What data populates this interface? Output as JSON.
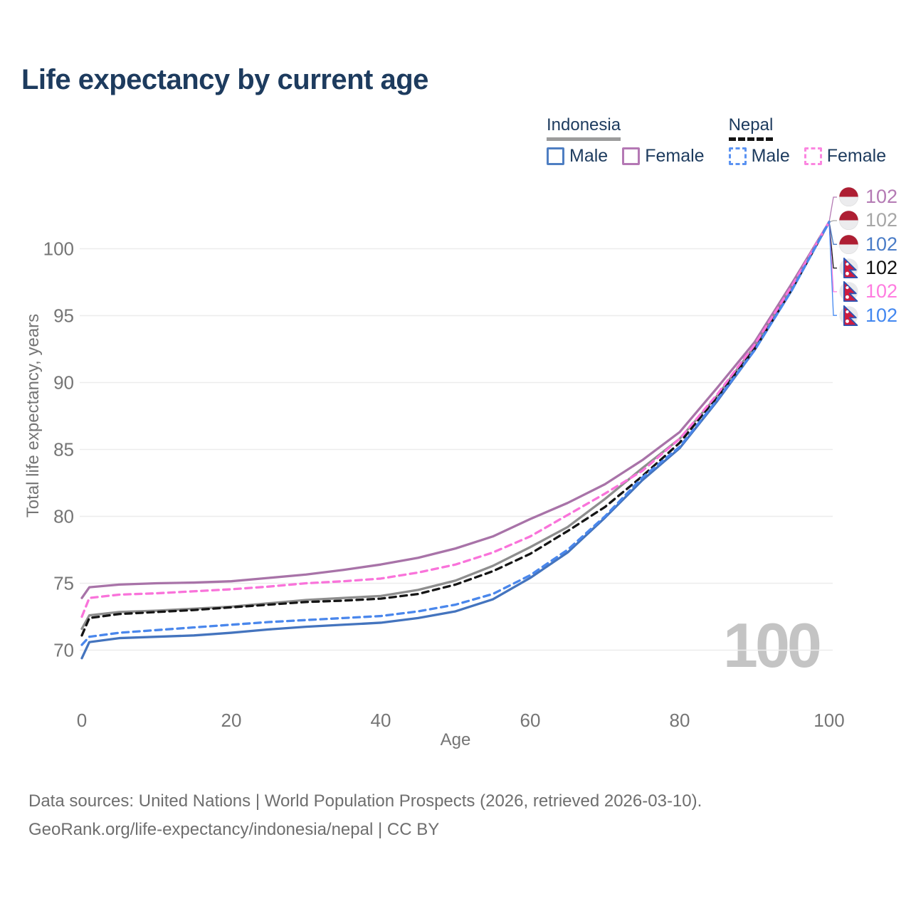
{
  "title": "Life expectancy by current age",
  "legend": {
    "groups": [
      {
        "name": "Indonesia",
        "line_style": "solid",
        "underline_color": "#9c9c9c",
        "items": [
          {
            "label": "Male",
            "color": "#4e7ec2",
            "dash": false
          },
          {
            "label": "Female",
            "color": "#b478b4",
            "dash": false
          }
        ]
      },
      {
        "name": "Nepal",
        "line_style": "dashed",
        "underline_color": "#141414",
        "items": [
          {
            "label": "Male",
            "color": "#5b93f2",
            "dash": true
          },
          {
            "label": "Female",
            "color": "#fb86e0",
            "dash": true
          }
        ]
      }
    ]
  },
  "chart_data": {
    "type": "line",
    "title": "Life expectancy by current age",
    "xlabel": "Age",
    "ylabel": "Total life expectancy, years",
    "x_ticks": [
      0,
      20,
      40,
      60,
      80,
      100
    ],
    "y_ticks": [
      70,
      75,
      80,
      85,
      90,
      95,
      100
    ],
    "xlim": [
      0,
      100
    ],
    "ylim": [
      66,
      104
    ],
    "grid": true,
    "watermark": "100",
    "x": [
      0,
      1,
      5,
      10,
      15,
      20,
      25,
      30,
      35,
      40,
      45,
      50,
      55,
      60,
      65,
      70,
      75,
      80,
      85,
      90,
      95,
      100
    ],
    "series": [
      {
        "name": "Indonesia Total",
        "country": "indonesia",
        "color": "#8e8e8e",
        "dash": false,
        "values": [
          71.6,
          72.6,
          72.85,
          72.95,
          73.1,
          73.25,
          73.5,
          73.75,
          73.9,
          74.05,
          74.5,
          75.2,
          76.3,
          77.7,
          79.2,
          81.3,
          83.6,
          85.8,
          89.0,
          92.7,
          97.1,
          102
        ]
      },
      {
        "name": "Indonesia Female",
        "country": "indonesia",
        "color": "#a873a8",
        "dash": false,
        "values": [
          73.9,
          74.7,
          74.9,
          75.0,
          75.05,
          75.15,
          75.4,
          75.65,
          76.0,
          76.4,
          76.9,
          77.6,
          78.5,
          79.8,
          81.0,
          82.4,
          84.2,
          86.3,
          89.6,
          93.0,
          97.4,
          102
        ]
      },
      {
        "name": "Indonesia Male",
        "country": "indonesia",
        "color": "#4474be",
        "dash": false,
        "values": [
          69.4,
          70.6,
          70.9,
          71.0,
          71.1,
          71.3,
          71.55,
          71.75,
          71.9,
          72.05,
          72.4,
          72.9,
          73.8,
          75.4,
          77.3,
          79.9,
          82.7,
          85.1,
          88.6,
          92.4,
          96.9,
          102
        ]
      },
      {
        "name": "Nepal Total",
        "country": "nepal",
        "color": "#151515",
        "dash": true,
        "values": [
          71.1,
          72.4,
          72.7,
          72.85,
          73.0,
          73.2,
          73.4,
          73.6,
          73.7,
          73.85,
          74.2,
          74.9,
          75.9,
          77.2,
          78.9,
          80.7,
          83.0,
          85.5,
          88.9,
          92.5,
          97.0,
          102
        ]
      },
      {
        "name": "Nepal Female",
        "country": "nepal",
        "color": "#f973da",
        "dash": true,
        "values": [
          72.5,
          73.9,
          74.15,
          74.25,
          74.4,
          74.55,
          74.75,
          75.0,
          75.15,
          75.35,
          75.8,
          76.4,
          77.3,
          78.5,
          80.1,
          81.7,
          83.4,
          85.8,
          89.1,
          92.8,
          97.2,
          102
        ]
      },
      {
        "name": "Nepal Male",
        "country": "nepal",
        "color": "#4a87ec",
        "dash": true,
        "values": [
          70.4,
          71.0,
          71.3,
          71.5,
          71.7,
          71.9,
          72.1,
          72.25,
          72.4,
          72.55,
          72.9,
          73.4,
          74.2,
          75.6,
          77.5,
          80.0,
          82.9,
          85.2,
          88.7,
          92.4,
          96.9,
          102
        ]
      }
    ],
    "legend_position": "top-right"
  },
  "end_labels": [
    {
      "value": "102",
      "flag": "indonesia",
      "series": "Indonesia Female",
      "color": "#b47ab4"
    },
    {
      "value": "102",
      "flag": "indonesia",
      "series": "Indonesia Total",
      "color": "#a6a6a6"
    },
    {
      "value": "102",
      "flag": "indonesia",
      "series": "Indonesia Male",
      "color": "#4a7cc7"
    },
    {
      "value": "102",
      "flag": "nepal",
      "series": "Nepal Total",
      "color": "#111111"
    },
    {
      "value": "102",
      "flag": "nepal",
      "series": "Nepal Female",
      "color": "#ff7ce0"
    },
    {
      "value": "102",
      "flag": "nepal",
      "series": "Nepal Male",
      "color": "#4287f0"
    }
  ],
  "footer": {
    "line1": "Data sources: United Nations | World Population Prospects (2026, retrieved 2026-03-10).",
    "line2": "GeoRank.org/life-expectancy/indonesia/nepal | CC BY"
  }
}
